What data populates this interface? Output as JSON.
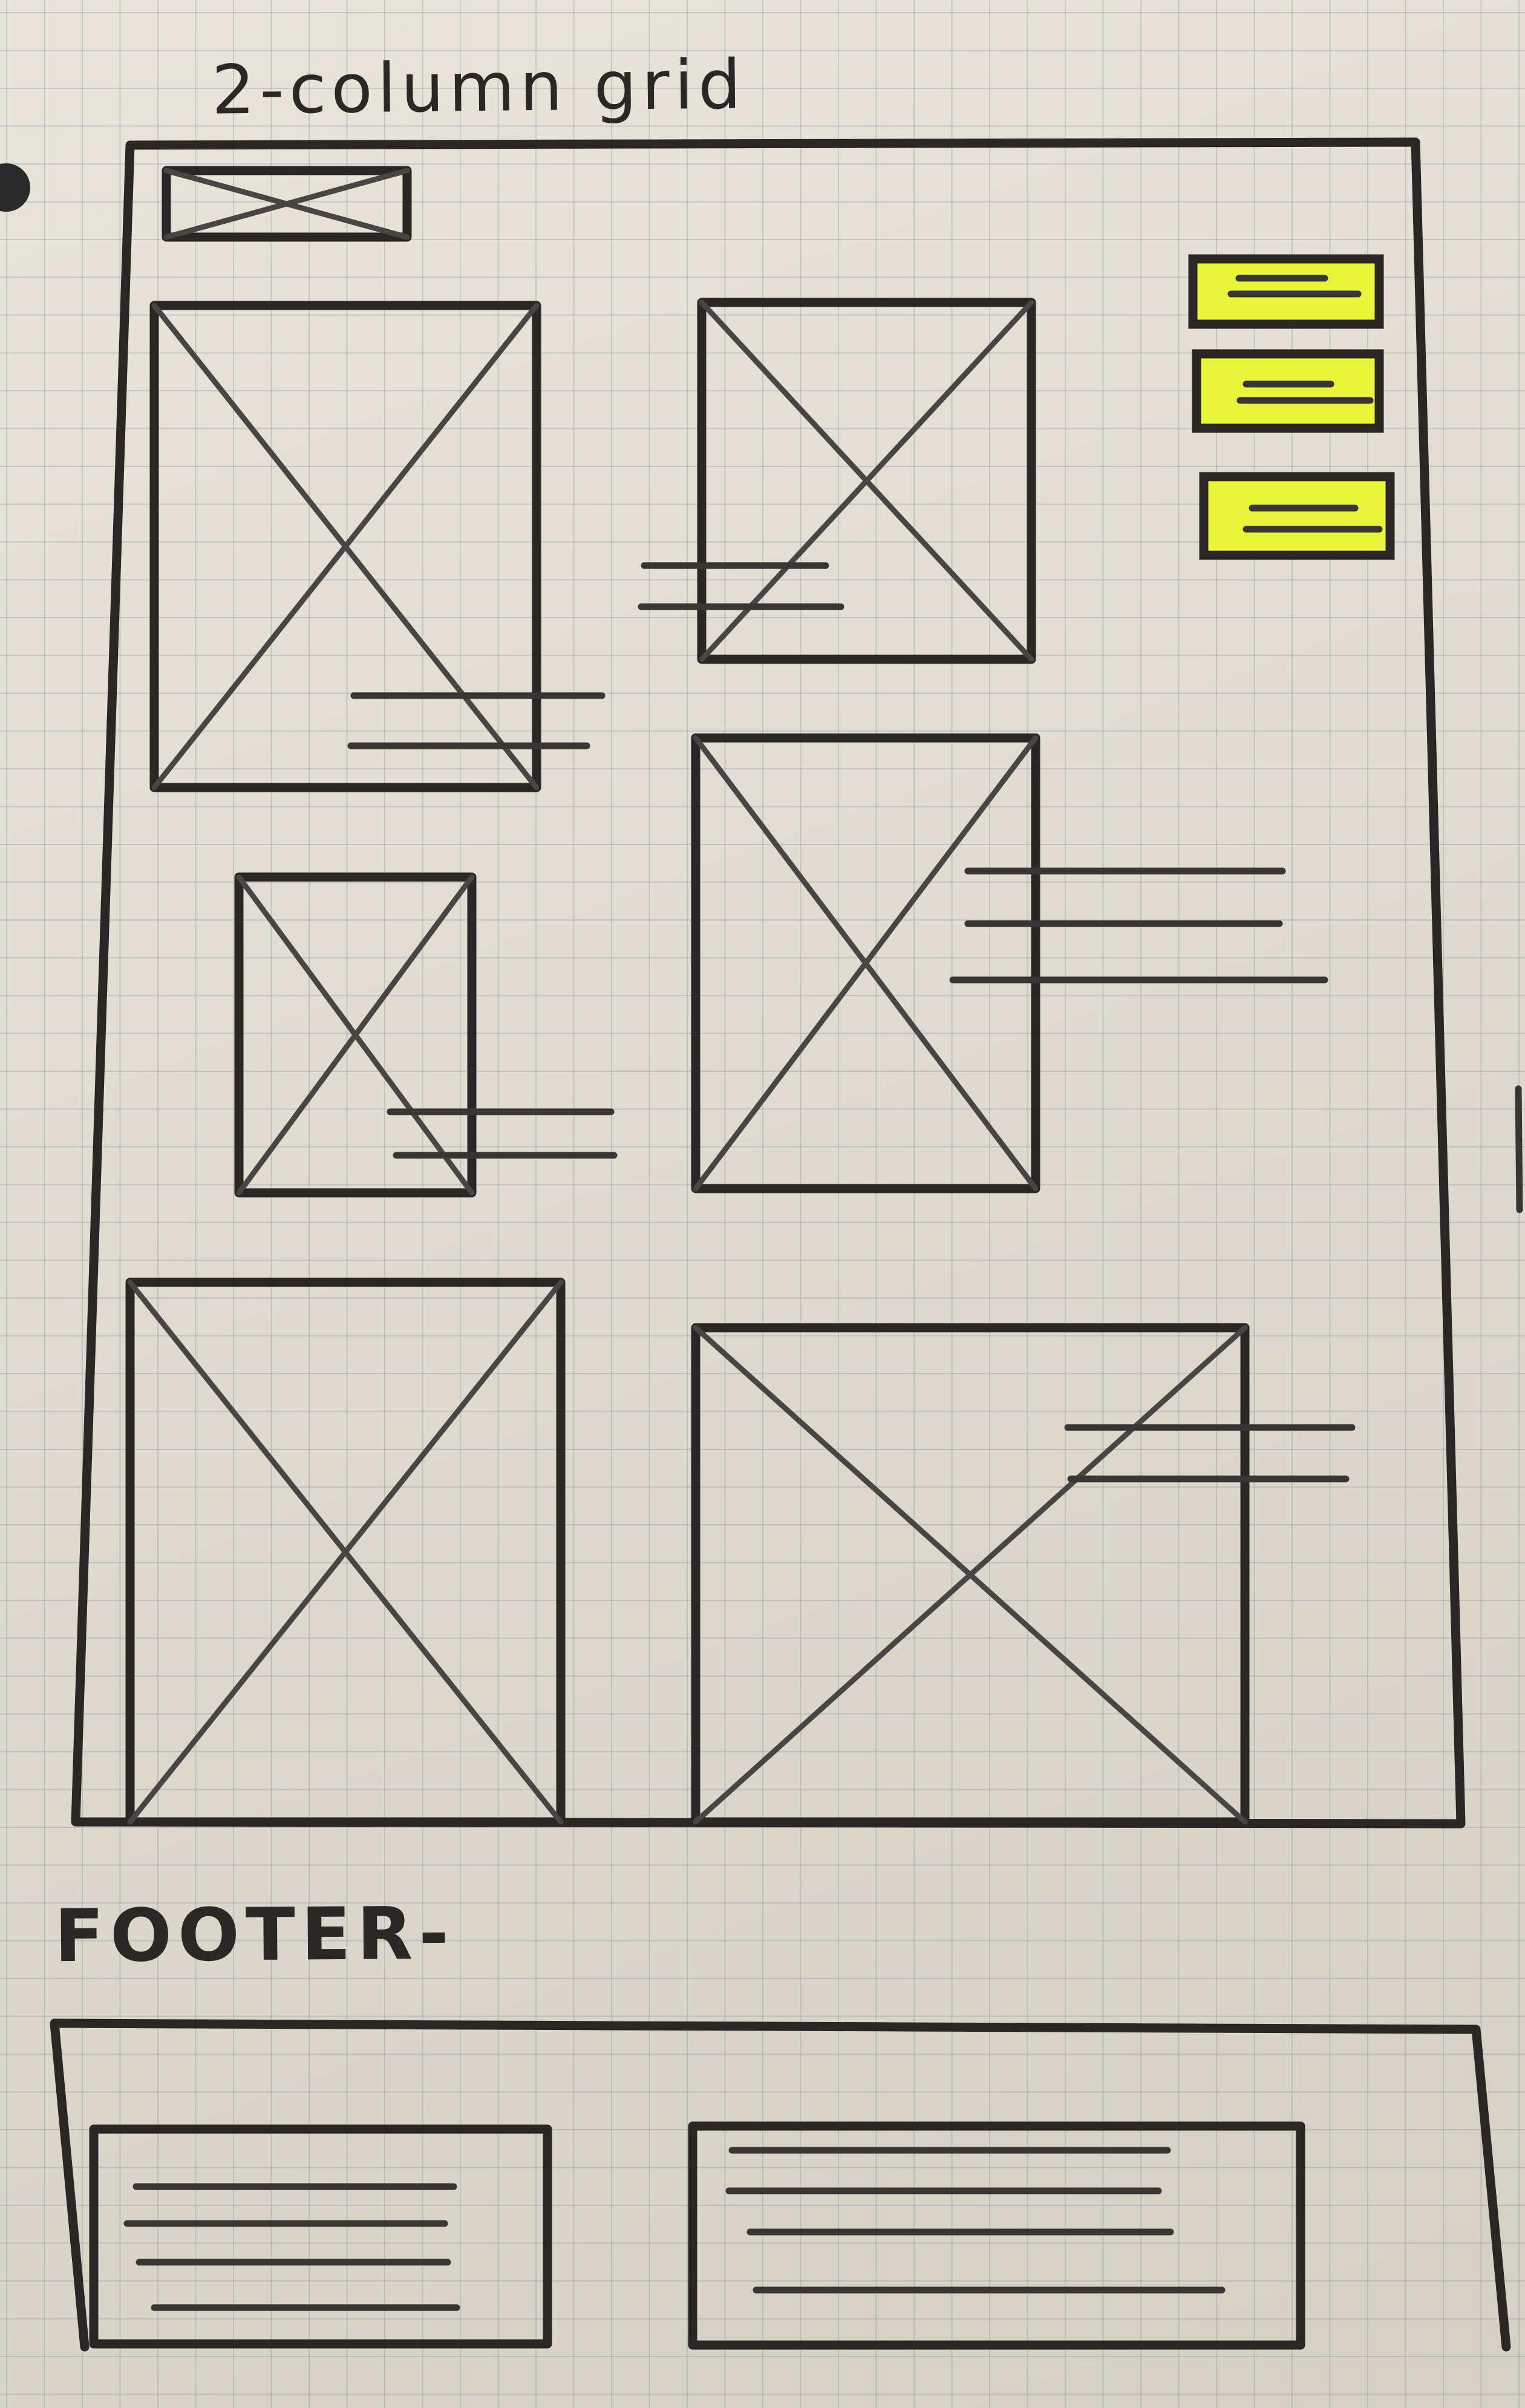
{
  "title": "2-column grid",
  "footer_label": "FOOTER-",
  "colors": {
    "paper": "#e2ddd0",
    "grid_lines": "#787d96",
    "ink": "#2a2626",
    "highlight": "#e8f53a"
  },
  "icons": {
    "logo": "image-placeholder-icon",
    "image_block": "image-placeholder-icon",
    "text_block": "text-lines-icon"
  }
}
